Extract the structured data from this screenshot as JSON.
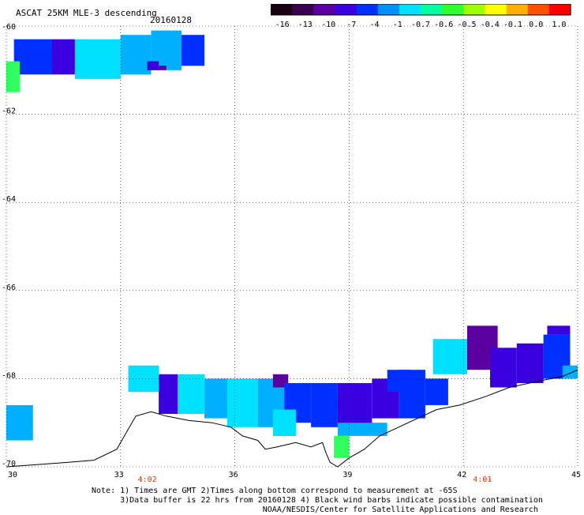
{
  "header": {
    "title": "ASCAT 25KM MLE-3 descending",
    "date": "20160128"
  },
  "colorbar": {
    "labels": [
      "-16",
      "-13",
      "-10",
      "-7",
      "-4",
      "-1",
      "-0.7",
      "-0.6",
      "-0.5",
      "-0.4",
      "-0.1",
      "0.0",
      "1.0"
    ],
    "colors": [
      "#1a0010",
      "#3a0050",
      "#5a00a0",
      "#3a00e0",
      "#0030ff",
      "#0090ff",
      "#00e0ff",
      "#00ffa0",
      "#30ff30",
      "#a0ff00",
      "#ffff00",
      "#ffb000",
      "#ff5000",
      "#ff0000"
    ]
  },
  "axes": {
    "x_ticks": [
      "30",
      "33",
      "36",
      "39",
      "42",
      "45"
    ],
    "y_ticks": [
      "-60",
      "-62",
      "-64",
      "-66",
      "-68",
      "-70"
    ]
  },
  "times": [
    {
      "label": "4:02",
      "lon": 33.7
    },
    {
      "label": "4:01",
      "lon": 42.5
    }
  ],
  "notes": [
    "Note: 1) Times are GMT 2)Times along bottom correspond to measurement at -65S",
    "      3)Data buffer is 22 hrs from 20160128 4) Black wind barbs indicate possible contamination",
    "                                    NOAA/NESDIS/Center for Satellite Applications and Research"
  ],
  "colors": {
    "blue": "#0030ff",
    "cyan": "#00e0ff",
    "azure": "#00b0ff",
    "violet": "#3a00e0",
    "purple": "#5a00a0",
    "green": "#30ff60",
    "time_label": "#ff3000"
  }
}
